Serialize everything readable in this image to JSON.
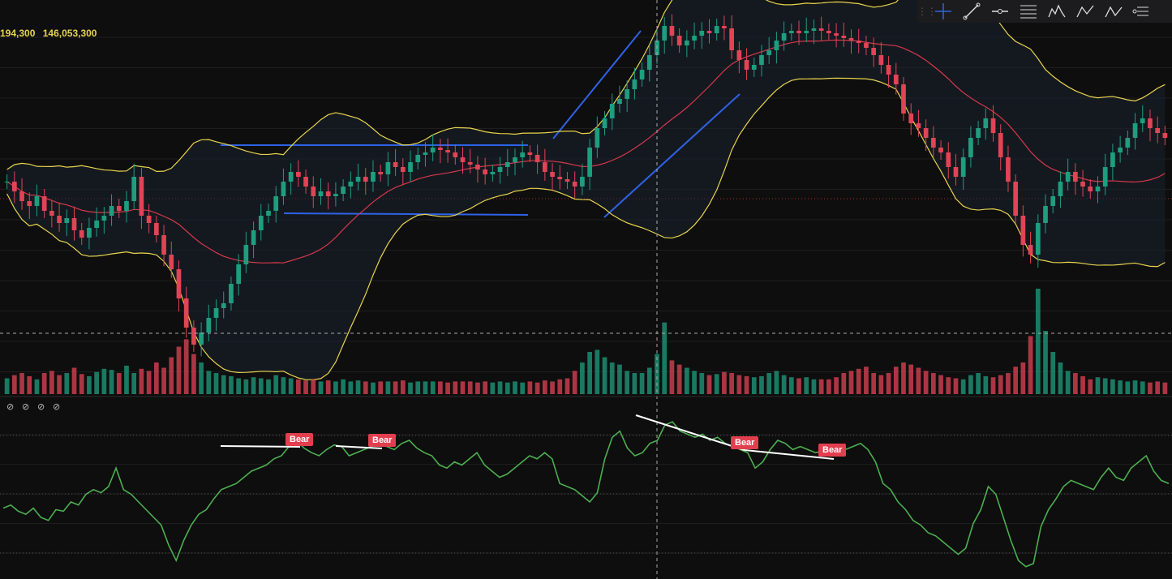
{
  "volume_readout": [
    "194,300",
    "146,053,300"
  ],
  "toolbar": {
    "tools": [
      {
        "name": "crosshair-tool-icon"
      },
      {
        "name": "trend-line-tool-icon"
      },
      {
        "name": "horizontal-line-tool-icon"
      },
      {
        "name": "fib-retracement-tool-icon"
      },
      {
        "name": "pattern-tool-icon"
      },
      {
        "name": "abcd-pattern-tool-icon"
      },
      {
        "name": "abc-pattern-tool-icon"
      },
      {
        "name": "anchored-tool-icon"
      }
    ]
  },
  "indicator_pane": {
    "visibility_toggles": 4,
    "divergence_labels": [
      "Bear",
      "Bear",
      "Bear",
      "Bear"
    ]
  },
  "colors": {
    "background": "#0e0e0e",
    "up_candle": "#1f9d7f",
    "down_candle": "#e04455",
    "bollinger_band": "#e8d44d",
    "bollinger_mid": "#d6384a",
    "trend_lines": "#2f62e6",
    "oscillator": "#4caf50",
    "divergence_line": "#ffffff",
    "bear_label": "#e23e4e"
  },
  "chart_data": {
    "type": "candlestick",
    "panes": [
      "price",
      "volume",
      "oscillator"
    ],
    "overlays": [
      "bollinger_bands",
      "moving_average"
    ],
    "price_closes": [
      0.72,
      0.68,
      0.64,
      0.62,
      0.66,
      0.6,
      0.58,
      0.55,
      0.57,
      0.52,
      0.49,
      0.53,
      0.56,
      0.58,
      0.62,
      0.6,
      0.64,
      0.74,
      0.58,
      0.55,
      0.5,
      0.42,
      0.36,
      0.24,
      0.12,
      0.05,
      0.1,
      0.16,
      0.2,
      0.22,
      0.3,
      0.38,
      0.46,
      0.52,
      0.58,
      0.6,
      0.66,
      0.72,
      0.76,
      0.74,
      0.7,
      0.66,
      0.68,
      0.66,
      0.67,
      0.7,
      0.72,
      0.74,
      0.72,
      0.76,
      0.75,
      0.8,
      0.78,
      0.76,
      0.8,
      0.83,
      0.84,
      0.86,
      0.85,
      0.84,
      0.82,
      0.8,
      0.79,
      0.77,
      0.75,
      0.76,
      0.78,
      0.8,
      0.82,
      0.84,
      0.83,
      0.8,
      0.76,
      0.74,
      0.73,
      0.72,
      0.7,
      0.74,
      0.86,
      0.94,
      0.98,
      1.04,
      1.06,
      1.1,
      1.14,
      1.18,
      1.24,
      1.3,
      1.36,
      1.32,
      1.28,
      1.3,
      1.32,
      1.34,
      1.33,
      1.36,
      1.35,
      1.26,
      1.22,
      1.18,
      1.2,
      1.24,
      1.26,
      1.3,
      1.33,
      1.34,
      1.33,
      1.34,
      1.35,
      1.34,
      1.33,
      1.32,
      1.31,
      1.3,
      1.29,
      1.27,
      1.24,
      1.2,
      1.16,
      1.12,
      1.0,
      0.96,
      0.94,
      0.9,
      0.86,
      0.84,
      0.78,
      0.74,
      0.82,
      0.9,
      0.94,
      0.98,
      0.92,
      0.82,
      0.72,
      0.58,
      0.46,
      0.42,
      0.55,
      0.62,
      0.66,
      0.72,
      0.76,
      0.72,
      0.7,
      0.68,
      0.7,
      0.78,
      0.84,
      0.86,
      0.9,
      0.96,
      0.98,
      0.94,
      0.92,
      0.9
    ],
    "volume": [
      0.15,
      0.18,
      0.2,
      0.17,
      0.14,
      0.2,
      0.22,
      0.18,
      0.2,
      0.25,
      0.19,
      0.17,
      0.21,
      0.24,
      0.23,
      0.2,
      0.27,
      0.2,
      0.24,
      0.22,
      0.3,
      0.25,
      0.35,
      0.45,
      0.52,
      0.38,
      0.3,
      0.22,
      0.2,
      0.18,
      0.17,
      0.15,
      0.14,
      0.16,
      0.15,
      0.14,
      0.18,
      0.16,
      0.15,
      0.14,
      0.13,
      0.14,
      0.12,
      0.13,
      0.12,
      0.14,
      0.12,
      0.13,
      0.12,
      0.11,
      0.12,
      0.12,
      0.12,
      0.13,
      0.11,
      0.12,
      0.12,
      0.12,
      0.12,
      0.11,
      0.12,
      0.12,
      0.12,
      0.11,
      0.12,
      0.11,
      0.12,
      0.11,
      0.12,
      0.11,
      0.12,
      0.11,
      0.13,
      0.12,
      0.14,
      0.15,
      0.22,
      0.3,
      0.4,
      0.42,
      0.35,
      0.3,
      0.28,
      0.22,
      0.2,
      0.2,
      0.25,
      0.38,
      0.68,
      0.32,
      0.28,
      0.25,
      0.22,
      0.2,
      0.18,
      0.19,
      0.21,
      0.2,
      0.18,
      0.17,
      0.16,
      0.17,
      0.2,
      0.22,
      0.18,
      0.16,
      0.15,
      0.16,
      0.14,
      0.14,
      0.14,
      0.16,
      0.2,
      0.22,
      0.24,
      0.26,
      0.2,
      0.18,
      0.2,
      0.26,
      0.3,
      0.28,
      0.25,
      0.22,
      0.2,
      0.18,
      0.16,
      0.15,
      0.14,
      0.18,
      0.2,
      0.17,
      0.16,
      0.18,
      0.2,
      0.26,
      0.3,
      0.55,
      1.0,
      0.6,
      0.4,
      0.3,
      0.22,
      0.2,
      0.17,
      0.14,
      0.16,
      0.15,
      0.14,
      0.13,
      0.12,
      0.13,
      0.12,
      0.11,
      0.12,
      0.11,
      0.12,
      0.12
    ],
    "oscillator": [
      0.46,
      0.48,
      0.44,
      0.42,
      0.46,
      0.4,
      0.38,
      0.45,
      0.44,
      0.5,
      0.48,
      0.55,
      0.58,
      0.56,
      0.6,
      0.72,
      0.58,
      0.55,
      0.5,
      0.45,
      0.4,
      0.35,
      0.22,
      0.12,
      0.25,
      0.35,
      0.42,
      0.45,
      0.52,
      0.58,
      0.6,
      0.62,
      0.66,
      0.7,
      0.72,
      0.74,
      0.78,
      0.8,
      0.86,
      0.9,
      0.85,
      0.82,
      0.8,
      0.84,
      0.87,
      0.86,
      0.8,
      0.82,
      0.84,
      0.86,
      0.87,
      0.86,
      0.84,
      0.88,
      0.9,
      0.85,
      0.82,
      0.8,
      0.74,
      0.72,
      0.76,
      0.74,
      0.78,
      0.82,
      0.74,
      0.7,
      0.66,
      0.68,
      0.72,
      0.76,
      0.8,
      0.78,
      0.82,
      0.78,
      0.62,
      0.6,
      0.58,
      0.54,
      0.5,
      0.56,
      0.78,
      0.92,
      0.96,
      0.85,
      0.8,
      0.82,
      0.88,
      0.9,
      1.0,
      1.02,
      0.96,
      0.94,
      0.92,
      0.94,
      0.9,
      0.92,
      0.88,
      0.86,
      0.84,
      0.82,
      0.72,
      0.76,
      0.84,
      0.9,
      0.88,
      0.84,
      0.86,
      0.84,
      0.82,
      0.83,
      0.84,
      0.83,
      0.84,
      0.86,
      0.88,
      0.84,
      0.76,
      0.62,
      0.58,
      0.5,
      0.45,
      0.38,
      0.35,
      0.3,
      0.28,
      0.24,
      0.2,
      0.16,
      0.2,
      0.36,
      0.45,
      0.6,
      0.55,
      0.4,
      0.25,
      0.12,
      0.08,
      0.1,
      0.34,
      0.45,
      0.52,
      0.6,
      0.64,
      0.62,
      0.6,
      0.58,
      0.66,
      0.72,
      0.66,
      0.64,
      0.72,
      0.76,
      0.8,
      0.7,
      0.64,
      0.62
    ]
  }
}
